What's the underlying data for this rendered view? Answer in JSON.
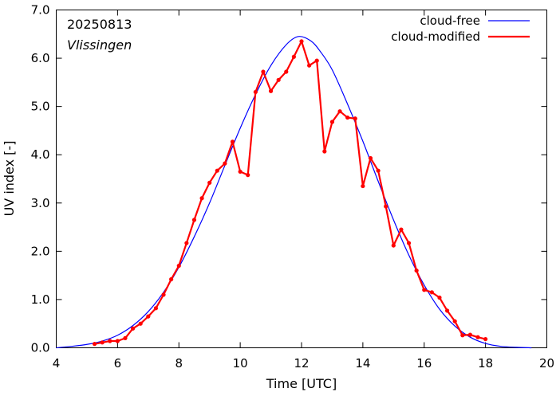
{
  "chart_data": {
    "type": "line",
    "title": "",
    "xlabel": "Time  [UTC]",
    "ylabel": "UV index  [-]",
    "xlim": [
      4,
      20
    ],
    "ylim": [
      0,
      7
    ],
    "xticks": [
      4,
      6,
      8,
      10,
      12,
      14,
      16,
      18,
      20
    ],
    "yticks": [
      0.0,
      1.0,
      2.0,
      3.0,
      4.0,
      5.0,
      6.0,
      7.0
    ],
    "xtick_labels": [
      "4",
      "6",
      "8",
      "10",
      "12",
      "14",
      "16",
      "18",
      "20"
    ],
    "ytick_labels": [
      "0.0",
      "1.0",
      "2.0",
      "3.0",
      "4.0",
      "5.0",
      "6.0",
      "7.0"
    ],
    "annotations": [
      "20250813",
      "Vlissingen"
    ],
    "legend_position": "top-right",
    "grid": false,
    "series": [
      {
        "name": "cloud-free",
        "color": "#0000ff",
        "style": "line",
        "x": [
          4.0,
          4.5,
          5.0,
          5.5,
          6.0,
          6.5,
          7.0,
          7.5,
          8.0,
          8.5,
          9.0,
          9.5,
          10.0,
          10.5,
          11.0,
          11.5,
          11.9,
          12.3,
          12.6,
          13.0,
          13.5,
          14.0,
          14.5,
          15.0,
          15.5,
          16.0,
          16.5,
          17.0,
          17.5,
          18.0,
          18.5,
          19.0,
          19.5
        ],
        "y": [
          0.0,
          0.03,
          0.07,
          0.14,
          0.26,
          0.46,
          0.75,
          1.15,
          1.67,
          2.3,
          3.0,
          3.78,
          4.55,
          5.25,
          5.85,
          6.28,
          6.45,
          6.36,
          6.15,
          5.76,
          5.05,
          4.28,
          3.45,
          2.65,
          1.92,
          1.3,
          0.8,
          0.45,
          0.22,
          0.09,
          0.03,
          0.01,
          0.0
        ]
      },
      {
        "name": "cloud-modified",
        "color": "#ff0000",
        "style": "line-markers",
        "x": [
          5.25,
          5.5,
          5.75,
          6.0,
          6.25,
          6.5,
          6.75,
          7.0,
          7.25,
          7.5,
          7.75,
          8.0,
          8.25,
          8.5,
          8.75,
          9.0,
          9.25,
          9.5,
          9.75,
          10.0,
          10.25,
          10.5,
          10.75,
          11.0,
          11.25,
          11.5,
          11.75,
          12.0,
          12.25,
          12.5,
          12.75,
          13.0,
          13.25,
          13.5,
          13.75,
          14.0,
          14.25,
          14.5,
          14.75,
          15.0,
          15.25,
          15.5,
          15.75,
          16.0,
          16.25,
          16.5,
          16.75,
          17.0,
          17.25,
          17.5,
          17.75,
          18.0
        ],
        "y": [
          0.08,
          0.11,
          0.14,
          0.14,
          0.2,
          0.4,
          0.5,
          0.65,
          0.82,
          1.1,
          1.42,
          1.7,
          2.17,
          2.65,
          3.1,
          3.42,
          3.67,
          3.82,
          4.27,
          3.65,
          3.58,
          5.3,
          5.72,
          5.32,
          5.55,
          5.72,
          6.03,
          6.35,
          5.85,
          5.95,
          4.07,
          4.68,
          4.9,
          4.77,
          4.75,
          3.35,
          3.93,
          3.67,
          2.93,
          2.12,
          2.45,
          2.17,
          1.6,
          1.2,
          1.15,
          1.04,
          0.77,
          0.55,
          0.26,
          0.27,
          0.22,
          0.18
        ]
      }
    ]
  }
}
